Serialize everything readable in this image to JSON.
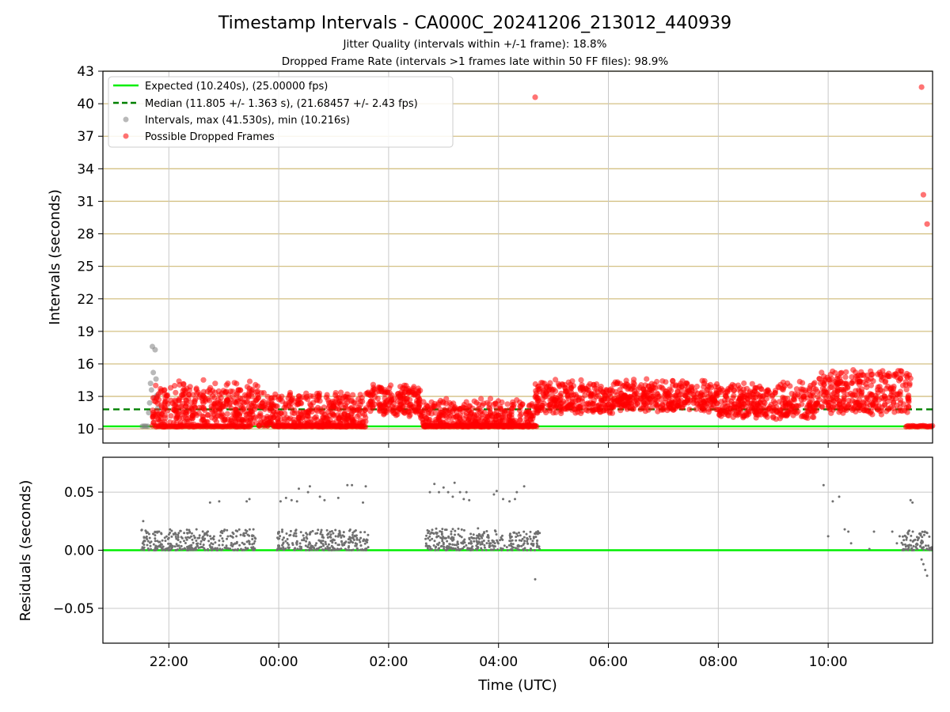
{
  "colors": {
    "expected": "#00ee00",
    "median": "#008000",
    "intervals": "#808080",
    "dropped": "#ff0000",
    "residuals": "#707070",
    "y_grid": "#d4c184",
    "x_grid": "#c8c8c8"
  },
  "chart_data": [
    {
      "type": "scatter",
      "title": "Timestamp Intervals - CA000C_20241206_213012_440939",
      "subtitle_lines": [
        "Jitter Quality (intervals within +/-1 frame): 18.8%",
        "Dropped Frame Rate (intervals >1 frames late within 50 FF files): 98.9%"
      ],
      "xlabel": "",
      "ylabel": "Intervals (seconds)",
      "x_axis_kind": "time",
      "x_range": [
        "2024-12-06 20:48",
        "2024-12-07 11:54"
      ],
      "ylim": [
        8.7,
        43.0
      ],
      "y_ticks": [
        10,
        13,
        16,
        19,
        22,
        25,
        28,
        31,
        34,
        37,
        40,
        43
      ],
      "x_ticks": [
        "22:00",
        "00:00",
        "02:00",
        "04:00",
        "06:00",
        "08:00",
        "10:00"
      ],
      "grid": {
        "x": true,
        "y": true
      },
      "legend_position": "top-left",
      "lines": [
        {
          "kind": "expected",
          "label": "Expected (10.240s), (25.00000 fps)",
          "y": 10.24,
          "style": "solid"
        },
        {
          "kind": "median",
          "label": "Median (11.805 +/- 1.363 s), (21.68457 +/- 2.43 fps)",
          "y": 11.805,
          "style": "dashed"
        }
      ],
      "series": [
        {
          "kind": "intervals",
          "name": "Intervals, max (41.530s), min (10.216s)",
          "points": [
            {
              "t": "2024-12-06 21:31",
              "y": 10.24
            },
            {
              "t": "2024-12-06 21:33",
              "y": 10.26
            },
            {
              "t": "2024-12-06 21:35",
              "y": 10.25
            },
            {
              "t": "2024-12-06 21:37",
              "y": 10.24
            },
            {
              "t": "2024-12-06 21:38",
              "y": 11.5
            },
            {
              "t": "2024-12-06 21:39",
              "y": 12.4
            },
            {
              "t": "2024-12-06 21:40",
              "y": 14.2
            },
            {
              "t": "2024-12-06 21:41",
              "y": 13.6
            },
            {
              "t": "2024-12-06 21:42",
              "y": 17.6
            },
            {
              "t": "2024-12-06 21:43",
              "y": 15.2
            },
            {
              "t": "2024-12-06 21:44",
              "y": 12.9
            },
            {
              "t": "2024-12-06 21:45",
              "y": 17.3
            },
            {
              "t": "2024-12-06 21:46",
              "y": 14.6
            },
            {
              "t": "2024-12-06 21:47",
              "y": 13.1
            },
            {
              "t": "2024-12-06 21:48",
              "y": 11.9
            }
          ]
        },
        {
          "kind": "dropped",
          "name": "Possible Dropped Frames",
          "bands": [
            {
              "from": "2024-12-06 21:42",
              "to": "2024-12-06 23:38",
              "base": 11.3,
              "spread": 3.6
            },
            {
              "from": "2024-12-06 23:38",
              "to": "2024-12-07 01:35",
              "base": 10.9,
              "spread": 3.0
            },
            {
              "from": "2024-12-07 01:35",
              "to": "2024-12-07 02:35",
              "base": 12.2,
              "spread": 2.3
            },
            {
              "from": "2024-12-07 02:35",
              "to": "2024-12-07 04:40",
              "base": 10.7,
              "spread": 2.5
            },
            {
              "from": "2024-12-07 04:40",
              "to": "2024-12-07 06:10",
              "base": 12.4,
              "spread": 2.6
            },
            {
              "from": "2024-12-07 06:10",
              "to": "2024-12-07 08:00",
              "base": 12.6,
              "spread": 2.4
            },
            {
              "from": "2024-12-07 08:00",
              "to": "2024-12-07 09:50",
              "base": 12.0,
              "spread": 2.8
            },
            {
              "from": "2024-12-07 09:50",
              "to": "2024-12-07 11:30",
              "base": 12.4,
              "spread": 3.6
            }
          ],
          "floor_runs": [
            {
              "from": "2024-12-06 21:45",
              "to": "2024-12-06 23:30",
              "y": 10.24
            },
            {
              "from": "2024-12-06 23:55",
              "to": "2024-12-07 01:35",
              "y": 10.24
            },
            {
              "from": "2024-12-07 02:38",
              "to": "2024-12-07 04:42",
              "y": 10.24
            },
            {
              "from": "2024-12-07 11:25",
              "to": "2024-12-07 11:54",
              "y": 10.24
            }
          ],
          "outliers": [
            {
              "t": "2024-12-07 04:40",
              "y": 40.6
            },
            {
              "t": "2024-12-07 11:42",
              "y": 41.53
            },
            {
              "t": "2024-12-07 11:44",
              "y": 31.6
            },
            {
              "t": "2024-12-07 11:48",
              "y": 28.9
            }
          ]
        }
      ]
    },
    {
      "type": "scatter",
      "title": "",
      "xlabel": "Time (UTC)",
      "ylabel": "Residuals (seconds)",
      "x_axis_kind": "time",
      "x_range": [
        "2024-12-06 20:48",
        "2024-12-07 11:54"
      ],
      "ylim": [
        -0.08,
        0.08
      ],
      "y_ticks": [
        0.05,
        0.0,
        -0.05
      ],
      "y_tick_labels": [
        "0.05",
        "0.00",
        "−0.05"
      ],
      "x_ticks": [
        "22:00",
        "00:00",
        "02:00",
        "04:00",
        "06:00",
        "08:00",
        "10:00"
      ],
      "grid": {
        "x": true,
        "y": true
      },
      "zero_line": 0.0,
      "series": [
        {
          "kind": "residuals",
          "clusters": [
            {
              "from": "2024-12-06 21:30",
              "to": "2024-12-06 23:35",
              "low": 0.0,
              "high": 0.018
            },
            {
              "from": "2024-12-06 23:58",
              "to": "2024-12-07 01:38",
              "low": 0.0,
              "high": 0.018
            },
            {
              "from": "2024-12-07 02:40",
              "to": "2024-12-07 04:45",
              "low": 0.0,
              "high": 0.019
            },
            {
              "from": "2024-12-07 11:20",
              "to": "2024-12-07 11:54",
              "low": 0.0,
              "high": 0.017
            }
          ],
          "points": [
            {
              "t": "2024-12-06 21:32",
              "y": 0.025
            },
            {
              "t": "2024-12-06 22:45",
              "y": 0.041
            },
            {
              "t": "2024-12-06 22:55",
              "y": 0.042
            },
            {
              "t": "2024-12-06 23:25",
              "y": 0.042
            },
            {
              "t": "2024-12-06 23:28",
              "y": 0.044
            },
            {
              "t": "2024-12-07 00:02",
              "y": 0.042
            },
            {
              "t": "2024-12-07 00:08",
              "y": 0.045
            },
            {
              "t": "2024-12-07 00:14",
              "y": 0.043
            },
            {
              "t": "2024-12-07 00:20",
              "y": 0.042
            },
            {
              "t": "2024-12-07 00:22",
              "y": 0.053
            },
            {
              "t": "2024-12-07 00:32",
              "y": 0.05
            },
            {
              "t": "2024-12-07 00:34",
              "y": 0.055
            },
            {
              "t": "2024-12-07 00:45",
              "y": 0.046
            },
            {
              "t": "2024-12-07 00:50",
              "y": 0.043
            },
            {
              "t": "2024-12-07 01:05",
              "y": 0.045
            },
            {
              "t": "2024-12-07 01:15",
              "y": 0.056
            },
            {
              "t": "2024-12-07 01:20",
              "y": 0.056
            },
            {
              "t": "2024-12-07 01:32",
              "y": 0.041
            },
            {
              "t": "2024-12-07 01:35",
              "y": 0.055
            },
            {
              "t": "2024-12-07 02:45",
              "y": 0.05
            },
            {
              "t": "2024-12-07 02:50",
              "y": 0.057
            },
            {
              "t": "2024-12-07 02:55",
              "y": 0.05
            },
            {
              "t": "2024-12-07 03:00",
              "y": 0.054
            },
            {
              "t": "2024-12-07 03:05",
              "y": 0.05
            },
            {
              "t": "2024-12-07 03:10",
              "y": 0.046
            },
            {
              "t": "2024-12-07 03:12",
              "y": 0.058
            },
            {
              "t": "2024-12-07 03:18",
              "y": 0.05
            },
            {
              "t": "2024-12-07 03:22",
              "y": 0.044
            },
            {
              "t": "2024-12-07 03:25",
              "y": 0.05
            },
            {
              "t": "2024-12-07 03:28",
              "y": 0.043
            },
            {
              "t": "2024-12-07 03:55",
              "y": 0.048
            },
            {
              "t": "2024-12-07 03:58",
              "y": 0.051
            },
            {
              "t": "2024-12-07 04:05",
              "y": 0.044
            },
            {
              "t": "2024-12-07 04:12",
              "y": 0.042
            },
            {
              "t": "2024-12-07 04:18",
              "y": 0.044
            },
            {
              "t": "2024-12-07 04:20",
              "y": 0.05
            },
            {
              "t": "2024-12-07 04:28",
              "y": 0.055
            },
            {
              "t": "2024-12-07 04:40",
              "y": -0.025
            },
            {
              "t": "2024-12-07 04:42",
              "y": 0.006
            },
            {
              "t": "2024-12-07 04:43",
              "y": 0.014
            },
            {
              "t": "2024-12-07 09:55",
              "y": 0.056
            },
            {
              "t": "2024-12-07 10:00",
              "y": 0.012
            },
            {
              "t": "2024-12-07 10:05",
              "y": 0.042
            },
            {
              "t": "2024-12-07 10:12",
              "y": 0.046
            },
            {
              "t": "2024-12-07 10:18",
              "y": 0.018
            },
            {
              "t": "2024-12-07 10:22",
              "y": 0.016
            },
            {
              "t": "2024-12-07 10:25",
              "y": 0.006
            },
            {
              "t": "2024-12-07 10:45",
              "y": 0.001
            },
            {
              "t": "2024-12-07 10:50",
              "y": 0.016
            },
            {
              "t": "2024-12-07 11:10",
              "y": 0.016
            },
            {
              "t": "2024-12-07 11:15",
              "y": 0.006
            },
            {
              "t": "2024-12-07 11:18",
              "y": 0.012
            },
            {
              "t": "2024-12-07 11:30",
              "y": 0.043
            },
            {
              "t": "2024-12-07 11:32",
              "y": 0.041
            },
            {
              "t": "2024-12-07 11:42",
              "y": -0.008
            },
            {
              "t": "2024-12-07 11:44",
              "y": -0.012
            },
            {
              "t": "2024-12-07 11:46",
              "y": -0.017
            },
            {
              "t": "2024-12-07 11:48",
              "y": -0.022
            }
          ]
        }
      ]
    }
  ]
}
